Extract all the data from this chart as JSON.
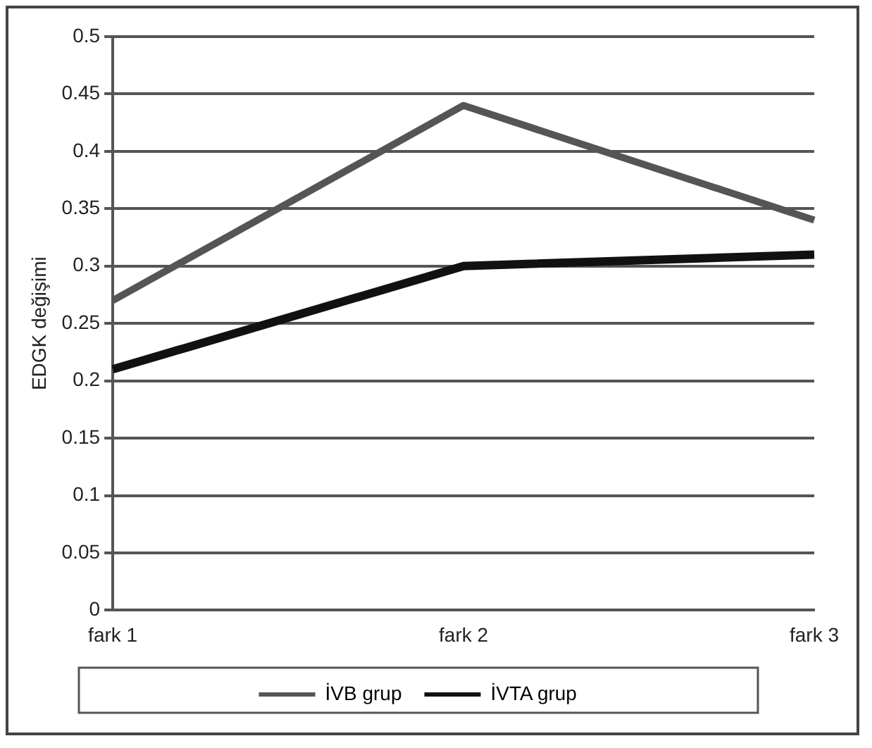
{
  "chart_data": {
    "type": "line",
    "ylabel": "EDGK değişimi",
    "categories": [
      "fark 1",
      "fark 2",
      "fark 3"
    ],
    "series": [
      {
        "name": "İVB grup",
        "color": "#555555",
        "values": [
          0.27,
          0.44,
          0.34
        ]
      },
      {
        "name": "İVTA grup",
        "color": "#111111",
        "values": [
          0.21,
          0.3,
          0.31
        ]
      }
    ],
    "ylim": [
      0,
      0.5
    ],
    "yticks": [
      0,
      0.05,
      0.1,
      0.15,
      0.2,
      0.25,
      0.3,
      0.35,
      0.4,
      0.45,
      0.5
    ],
    "grid": "y",
    "legend": "bottom",
    "marker": "none",
    "line_style": "solid"
  }
}
